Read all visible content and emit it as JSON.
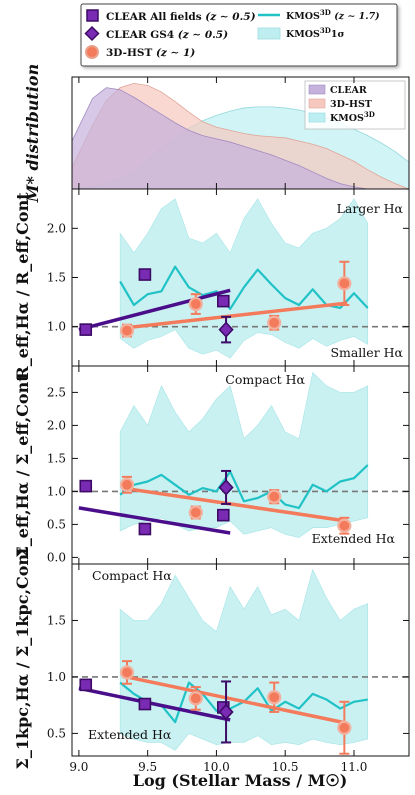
{
  "colors": {
    "clear_all": "#7a2bb3",
    "clear_gs4": "#7a2bb3",
    "clear_line": "#4b0e8a",
    "hst": "#f47a5c",
    "hst_line": "#f47a5c",
    "kmos_line": "#20c2c5",
    "kmos_band": "#bfeef0",
    "ref_line": "#777777",
    "dist_clear": "#c5b1dc",
    "dist_hst": "#f6c8bf",
    "dist_kmos": "#bdeff2"
  },
  "legend": {
    "clear_all": {
      "label": "CLEAR All fields",
      "z": "(z ∼ 0.5)",
      "marker": "square"
    },
    "clear_gs4": {
      "label": "CLEAR GS4",
      "z": "(z ∼ 0.5)",
      "marker": "diamond"
    },
    "hst": {
      "label": "3D-HST",
      "z": "(z ∼ 1)",
      "marker": "circle"
    },
    "kmos_line": {
      "label": "KMOS",
      "sup": "3D",
      "z": "(z ∼ 1.7)"
    },
    "kmos_band": {
      "label": "KMOS",
      "sup": "3D",
      "suffix": "1σ"
    }
  },
  "dist_panel": {
    "ylabel": "M* distribution",
    "legend": [
      {
        "label": "CLEAR"
      },
      {
        "label": "3D-HST"
      },
      {
        "label": "KMOS",
        "sup": "3D"
      }
    ]
  },
  "xaxis": {
    "label": "Log (Stellar Mass / M☉)",
    "xlim": [
      8.95,
      11.4
    ],
    "ticks": [
      9.0,
      9.5,
      10.0,
      10.5,
      11.0
    ],
    "tick_labels": [
      "9.0",
      "9.5",
      "10.0",
      "10.5",
      "11.0"
    ]
  },
  "chart_data": [
    {
      "type": "area",
      "ylabel": "M* distribution",
      "x": [
        8.95,
        9.1,
        9.2,
        9.3,
        9.4,
        9.5,
        9.6,
        9.7,
        9.8,
        9.9,
        10.0,
        10.1,
        10.2,
        10.3,
        10.4,
        10.5,
        10.6,
        10.7,
        10.8,
        10.9,
        11.0,
        11.1,
        11.2,
        11.3,
        11.4
      ],
      "ylim": [
        0,
        1.05
      ],
      "series": [
        {
          "name": "CLEAR",
          "values": [
            0.45,
            0.85,
            0.95,
            0.93,
            0.86,
            0.78,
            0.7,
            0.62,
            0.55,
            0.5,
            0.47,
            0.44,
            0.4,
            0.36,
            0.32,
            0.27,
            0.22,
            0.16,
            0.1,
            0.05,
            0.02,
            0.0,
            0.0,
            0.0,
            0.0
          ]
        },
        {
          "name": "3D-HST",
          "values": [
            0.2,
            0.6,
            0.83,
            0.95,
            0.99,
            0.97,
            0.91,
            0.82,
            0.72,
            0.63,
            0.58,
            0.55,
            0.52,
            0.5,
            0.49,
            0.48,
            0.45,
            0.42,
            0.38,
            0.32,
            0.26,
            0.18,
            0.11,
            0.05,
            0.0
          ]
        },
        {
          "name": "KMOS3D",
          "values": [
            0.0,
            0.02,
            0.05,
            0.1,
            0.17,
            0.27,
            0.38,
            0.48,
            0.57,
            0.64,
            0.69,
            0.73,
            0.76,
            0.77,
            0.77,
            0.76,
            0.74,
            0.71,
            0.67,
            0.62,
            0.56,
            0.5,
            0.43,
            0.35,
            0.25
          ]
        }
      ]
    },
    {
      "type": "scatter",
      "ylabel": "R_eff,Hα / R_eff,Cont",
      "ylim": [
        0.6,
        2.4
      ],
      "yticks": [
        1.0,
        1.5,
        2.0
      ],
      "ytick_labels": [
        "1.0",
        "1.5",
        "2.0"
      ],
      "ref_y": 1.0,
      "annotations": {
        "top": "Larger Hα",
        "bottom": "Smaller Hα"
      },
      "clear_all": {
        "x": [
          9.05,
          9.48,
          10.05
        ],
        "y": [
          0.97,
          1.53,
          1.26
        ],
        "yerr": [
          0.03,
          0.05,
          0.05
        ]
      },
      "clear_gs4": {
        "x": [
          10.07
        ],
        "y": [
          0.97
        ],
        "yerr": [
          0.13
        ]
      },
      "hst": {
        "x": [
          9.35,
          9.85,
          10.42,
          10.93
        ],
        "y": [
          0.96,
          1.23,
          1.04,
          1.44
        ],
        "yerr": [
          0.06,
          0.1,
          0.07,
          0.22
        ]
      },
      "clear_fit": {
        "x": [
          9.0,
          10.1
        ],
        "y": [
          0.97,
          1.37
        ]
      },
      "hst_fit": {
        "x": [
          9.35,
          10.95
        ],
        "y": [
          0.99,
          1.24
        ]
      },
      "kmos_x": [
        9.3,
        9.4,
        9.5,
        9.6,
        9.7,
        9.8,
        9.9,
        10.0,
        10.1,
        10.2,
        10.3,
        10.4,
        10.5,
        10.6,
        10.7,
        10.8,
        10.9,
        11.0,
        11.1
      ],
      "kmos_line": [
        1.46,
        1.22,
        1.33,
        1.36,
        1.61,
        1.4,
        1.32,
        1.36,
        1.18,
        1.4,
        1.58,
        1.43,
        1.29,
        1.22,
        1.38,
        1.22,
        1.19,
        1.34,
        1.19
      ],
      "kmos_low": [
        0.88,
        0.78,
        0.86,
        0.9,
        0.97,
        0.78,
        0.72,
        0.76,
        0.68,
        0.86,
        0.94,
        0.92,
        0.84,
        0.78,
        0.88,
        0.8,
        0.86,
        0.9,
        0.82
      ],
      "kmos_high": [
        1.95,
        1.75,
        1.95,
        2.2,
        2.3,
        1.9,
        1.85,
        1.95,
        1.75,
        2.1,
        2.3,
        2.05,
        1.85,
        1.8,
        1.95,
        2.0,
        2.1,
        2.3,
        2.05
      ]
    },
    {
      "type": "scatter",
      "ylabel": "Σ_eff,Hα / Σ_eff,Cont",
      "ylim": [
        -0.1,
        2.9
      ],
      "yticks": [
        0.0,
        0.5,
        1.0,
        1.5,
        2.0,
        2.5
      ],
      "ytick_labels": [
        "0.0",
        "0.5",
        "1.0",
        "1.5",
        "2.0",
        "2.5"
      ],
      "ref_y": 1.0,
      "annotations": {
        "top": "Compact Hα",
        "bottom": "Extended Hα"
      },
      "clear_all": {
        "x": [
          9.05,
          9.48,
          10.05
        ],
        "y": [
          1.08,
          0.43,
          0.64
        ],
        "yerr": [
          0.03,
          0.03,
          0.05
        ]
      },
      "clear_gs4": {
        "x": [
          10.07
        ],
        "y": [
          1.06
        ],
        "yerr": [
          0.25
        ]
      },
      "hst": {
        "x": [
          9.35,
          9.85,
          10.42,
          10.93
        ],
        "y": [
          1.1,
          0.68,
          0.92,
          0.48
        ],
        "yerr": [
          0.12,
          0.09,
          0.1,
          0.12
        ]
      },
      "clear_fit": {
        "x": [
          9.0,
          10.1
        ],
        "y": [
          0.75,
          0.37
        ]
      },
      "hst_fit": {
        "x": [
          9.35,
          10.95
        ],
        "y": [
          1.04,
          0.55
        ]
      },
      "kmos_x": [
        9.3,
        9.4,
        9.5,
        9.6,
        9.7,
        9.8,
        9.9,
        10.0,
        10.1,
        10.2,
        10.3,
        10.4,
        10.5,
        10.6,
        10.7,
        10.8,
        10.9,
        11.0,
        11.1
      ],
      "kmos_line": [
        0.95,
        1.1,
        1.15,
        1.25,
        1.1,
        0.95,
        1.05,
        1.0,
        1.3,
        0.85,
        0.9,
        1.0,
        0.8,
        0.75,
        1.1,
        1.0,
        1.15,
        1.2,
        1.4
      ],
      "kmos_low": [
        0.4,
        0.5,
        0.55,
        0.6,
        0.5,
        0.4,
        0.45,
        0.45,
        0.55,
        0.35,
        0.4,
        0.45,
        0.35,
        0.3,
        0.45,
        0.45,
        0.5,
        0.55,
        0.6
      ],
      "kmos_high": [
        1.9,
        2.3,
        2.0,
        2.6,
        2.2,
        1.9,
        2.1,
        2.4,
        2.6,
        1.8,
        2.0,
        2.3,
        1.9,
        1.8,
        2.8,
        2.6,
        2.5,
        2.5,
        2.6
      ]
    },
    {
      "type": "scatter",
      "ylabel": "Σ_1kpc,Hα / Σ_1kpc,Cont",
      "ylim": [
        0.3,
        2.0
      ],
      "yticks": [
        0.5,
        1.0,
        1.5
      ],
      "ytick_labels": [
        "0.5",
        "1.0",
        "1.5"
      ],
      "ref_y": 1.0,
      "annotations": {
        "top": "Compact Hα",
        "bottom": "Extended Hα"
      },
      "clear_all": {
        "x": [
          9.05,
          9.48,
          10.05
        ],
        "y": [
          0.93,
          0.76,
          0.73
        ],
        "yerr": [
          0.02,
          0.03,
          0.04
        ]
      },
      "clear_gs4": {
        "x": [
          10.07
        ],
        "y": [
          0.69
        ],
        "yerr": [
          0.27
        ]
      },
      "hst": {
        "x": [
          9.35,
          9.85,
          10.42,
          10.93
        ],
        "y": [
          1.04,
          0.81,
          0.82,
          0.55
        ],
        "yerr": [
          0.1,
          0.1,
          0.13,
          0.23
        ]
      },
      "clear_fit": {
        "x": [
          9.0,
          10.1
        ],
        "y": [
          0.9,
          0.62
        ]
      },
      "hst_fit": {
        "x": [
          9.35,
          10.95
        ],
        "y": [
          1.0,
          0.59
        ]
      },
      "kmos_x": [
        9.3,
        9.4,
        9.5,
        9.6,
        9.7,
        9.8,
        9.9,
        10.0,
        10.1,
        10.2,
        10.3,
        10.4,
        10.5,
        10.6,
        10.7,
        10.8,
        10.9,
        11.0,
        11.1
      ],
      "kmos_line": [
        0.95,
        0.85,
        0.78,
        0.75,
        0.6,
        0.95,
        0.85,
        0.7,
        0.72,
        0.78,
        0.9,
        0.7,
        0.78,
        0.72,
        0.85,
        0.8,
        0.72,
        0.78,
        0.8
      ],
      "kmos_low": [
        0.5,
        0.45,
        0.42,
        0.42,
        0.35,
        0.5,
        0.45,
        0.4,
        0.42,
        0.42,
        0.48,
        0.4,
        0.42,
        0.4,
        0.45,
        0.42,
        0.4,
        0.42,
        0.45
      ],
      "kmos_high": [
        1.6,
        1.5,
        1.5,
        1.65,
        1.9,
        1.7,
        1.5,
        1.4,
        1.8,
        1.6,
        1.8,
        1.55,
        1.6,
        1.5,
        1.95,
        1.7,
        1.5,
        1.6,
        1.65
      ]
    }
  ]
}
